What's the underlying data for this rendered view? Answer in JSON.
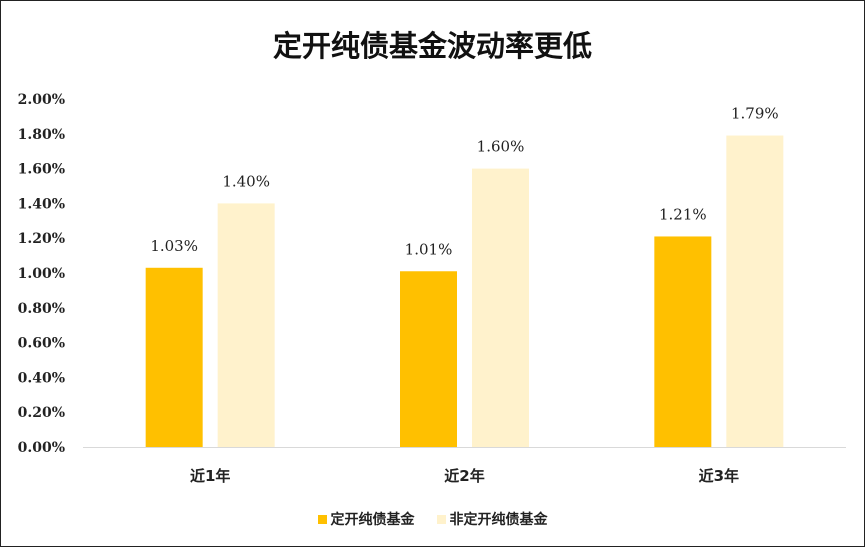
{
  "chart_data": {
    "type": "bar",
    "title": "定开纯债基金波动率更低",
    "categories": [
      "近1年",
      "近2年",
      "近3年"
    ],
    "series": [
      {
        "name": "定开纯债基金",
        "values": [
          1.03,
          1.01,
          1.21
        ],
        "color": "#FFC000"
      },
      {
        "name": "非定开纯债基金",
        "values": [
          1.4,
          1.6,
          1.79
        ],
        "color": "#FFF2CC"
      }
    ],
    "data_labels": [
      [
        "1.03%",
        "1.01%",
        "1.21%"
      ],
      [
        "1.40%",
        "1.60%",
        "1.79%"
      ]
    ],
    "yticks": [
      "0.00%",
      "0.20%",
      "0.40%",
      "0.60%",
      "0.80%",
      "1.00%",
      "1.20%",
      "1.40%",
      "1.60%",
      "1.80%",
      "2.00%"
    ],
    "ylim": [
      0,
      2.0
    ],
    "ylabel": "",
    "xlabel": "",
    "grid": false,
    "legend_position": "bottom"
  }
}
